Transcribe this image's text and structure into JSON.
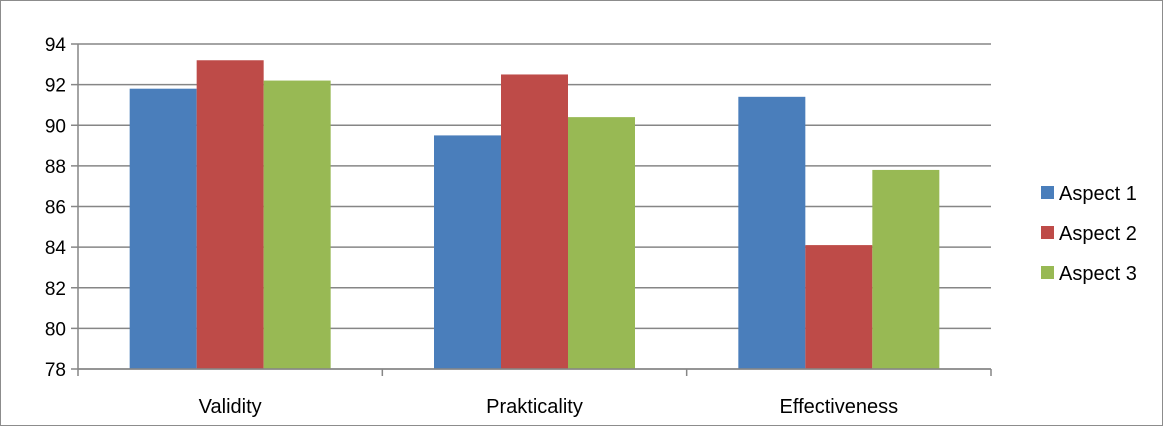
{
  "chart_data": {
    "type": "bar",
    "categories": [
      "Validity",
      "Prakticality",
      "Effectiveness"
    ],
    "series": [
      {
        "name": "Aspect 1",
        "values": [
          91.8,
          89.5,
          91.4
        ],
        "color": "#4a7ebb"
      },
      {
        "name": "Aspect 2",
        "values": [
          93.2,
          92.5,
          84.1
        ],
        "color": "#be4b48"
      },
      {
        "name": "Aspect 3",
        "values": [
          92.2,
          90.4,
          87.8
        ],
        "color": "#98b954"
      }
    ],
    "yticks": [
      "78",
      "80",
      "82",
      "84",
      "86",
      "88",
      "90",
      "92",
      "94"
    ],
    "ylim": [
      78,
      94
    ],
    "grid": true,
    "legend": "right",
    "title": "",
    "xlabel": "",
    "ylabel": ""
  }
}
